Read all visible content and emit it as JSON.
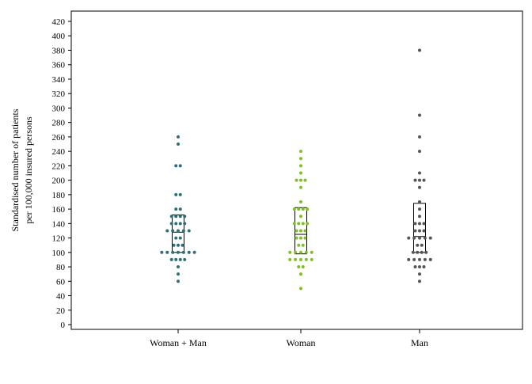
{
  "chart_data": {
    "type": "scatter",
    "subtype": "dot-strip-with-box",
    "title": "",
    "xlabel": "",
    "ylabel_lines": [
      "Standardised number of patients",
      "per 100,000 insured persons"
    ],
    "ylim": [
      0,
      420
    ],
    "ytick_step": 20,
    "grid": false,
    "legend": "none",
    "categories": [
      "Woman + Man",
      "Woman",
      "Man"
    ],
    "series": [
      {
        "category": "Woman + Man",
        "color": "#2a7078",
        "values": [
          260,
          250,
          220,
          220,
          180,
          180,
          160,
          160,
          150,
          150,
          150,
          150,
          140,
          140,
          140,
          140,
          130,
          130,
          130,
          130,
          130,
          120,
          120,
          110,
          110,
          110,
          100,
          100,
          100,
          100,
          100,
          100,
          100,
          90,
          90,
          90,
          90,
          80,
          70,
          60
        ],
        "box": {
          "q1": 100,
          "median": 128,
          "q3": 152
        }
      },
      {
        "category": "Woman",
        "color": "#7dc21e",
        "values": [
          240,
          230,
          220,
          210,
          200,
          200,
          200,
          190,
          170,
          160,
          160,
          160,
          160,
          150,
          140,
          140,
          140,
          140,
          130,
          130,
          130,
          120,
          120,
          120,
          110,
          110,
          100,
          100,
          100,
          100,
          100,
          90,
          90,
          90,
          90,
          90,
          80,
          80,
          70,
          50
        ],
        "box": {
          "q1": 98,
          "median": 125,
          "q3": 162
        }
      },
      {
        "category": "Man",
        "color": "#555555",
        "values": [
          380,
          290,
          260,
          240,
          210,
          200,
          200,
          200,
          190,
          170,
          160,
          150,
          140,
          140,
          140,
          130,
          130,
          130,
          120,
          120,
          120,
          120,
          120,
          110,
          110,
          100,
          100,
          100,
          100,
          90,
          90,
          90,
          90,
          90,
          80,
          80,
          80,
          70,
          60
        ],
        "box": {
          "q1": 100,
          "median": 122,
          "q3": 168
        }
      }
    ]
  }
}
